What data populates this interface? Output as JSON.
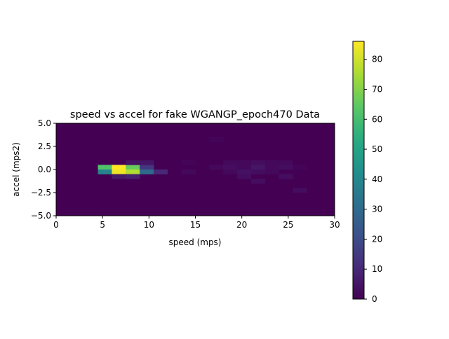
{
  "chart_data": {
    "type": "heatmap",
    "title": "speed vs accel for fake WGANGP_epoch470  Data",
    "xlabel": "speed (mps)",
    "ylabel": "accel (mps2)",
    "xlim": [
      0,
      30
    ],
    "ylim": [
      -5,
      5
    ],
    "x_ticks": [
      0,
      5,
      10,
      15,
      20,
      25,
      30
    ],
    "y_ticks": [
      -5.0,
      -2.5,
      0.0,
      2.5,
      5.0
    ],
    "x_tick_labels": [
      "0",
      "5",
      "10",
      "15",
      "20",
      "25",
      "30"
    ],
    "y_tick_labels": [
      "−5.0",
      "−2.5",
      "0.0",
      "2.5",
      "5.0"
    ],
    "x_bin_edges": [
      0,
      1.5,
      3,
      4.5,
      6,
      7.5,
      9,
      10.5,
      12,
      13.5,
      15,
      16.5,
      18,
      19.5,
      21,
      22.5,
      24,
      25.5,
      27,
      28.5,
      30
    ],
    "y_bin_edges": [
      -5,
      -4.5,
      -4,
      -3.5,
      -3,
      -2.5,
      -2,
      -1.5,
      -1,
      -0.5,
      0,
      0.5,
      1,
      1.5,
      2,
      2.5,
      3,
      3.5,
      4,
      4.5,
      5
    ],
    "cells": [
      {
        "x": 4.5,
        "y": 0.0,
        "value": 62
      },
      {
        "x": 6.0,
        "y": 0.0,
        "value": 86
      },
      {
        "x": 7.5,
        "y": 0.0,
        "value": 66
      },
      {
        "x": 9.0,
        "y": 0.0,
        "value": 14
      },
      {
        "x": 4.5,
        "y": -0.5,
        "value": 38
      },
      {
        "x": 6.0,
        "y": -0.5,
        "value": 84
      },
      {
        "x": 7.5,
        "y": -0.5,
        "value": 76
      },
      {
        "x": 9.0,
        "y": -0.5,
        "value": 30
      },
      {
        "x": 10.5,
        "y": -0.5,
        "value": 10
      },
      {
        "x": 6.0,
        "y": -1.0,
        "value": 6
      },
      {
        "x": 7.5,
        "y": -1.0,
        "value": 8
      },
      {
        "x": 9.0,
        "y": 0.5,
        "value": 5
      },
      {
        "x": 7.5,
        "y": 0.5,
        "value": 4
      },
      {
        "x": 13.5,
        "y": 0.5,
        "value": 1
      },
      {
        "x": 13.5,
        "y": -0.5,
        "value": 2
      },
      {
        "x": 16.5,
        "y": 0.0,
        "value": 2
      },
      {
        "x": 16.5,
        "y": 3.0,
        "value": 1
      },
      {
        "x": 18.0,
        "y": 0.5,
        "value": 2
      },
      {
        "x": 18.0,
        "y": 0.0,
        "value": 3
      },
      {
        "x": 18.0,
        "y": -0.5,
        "value": 2
      },
      {
        "x": 19.5,
        "y": 0.5,
        "value": 2
      },
      {
        "x": 19.5,
        "y": 0.0,
        "value": 2
      },
      {
        "x": 19.5,
        "y": -0.5,
        "value": 4
      },
      {
        "x": 19.5,
        "y": -1.0,
        "value": 3
      },
      {
        "x": 21.0,
        "y": 0.5,
        "value": 3
      },
      {
        "x": 21.0,
        "y": 0.0,
        "value": 5
      },
      {
        "x": 21.0,
        "y": -0.5,
        "value": 3
      },
      {
        "x": 22.5,
        "y": 0.5,
        "value": 2
      },
      {
        "x": 22.5,
        "y": 0.0,
        "value": 2
      },
      {
        "x": 22.5,
        "y": -0.5,
        "value": 2
      },
      {
        "x": 21.0,
        "y": -1.5,
        "value": 3
      },
      {
        "x": 24.0,
        "y": 0.5,
        "value": 2
      },
      {
        "x": 24.0,
        "y": 0.0,
        "value": 3
      },
      {
        "x": 24.0,
        "y": -1.0,
        "value": 3
      },
      {
        "x": 25.5,
        "y": 0.0,
        "value": 1
      },
      {
        "x": 25.5,
        "y": -2.5,
        "value": 3
      }
    ],
    "colorbar": {
      "colormap": "viridis",
      "min": 0,
      "max": 86,
      "ticks": [
        0,
        10,
        20,
        30,
        40,
        50,
        60,
        70,
        80
      ],
      "tick_labels": [
        "0",
        "10",
        "20",
        "30",
        "40",
        "50",
        "60",
        "70",
        "80"
      ]
    },
    "grid": false,
    "legend": "none"
  }
}
